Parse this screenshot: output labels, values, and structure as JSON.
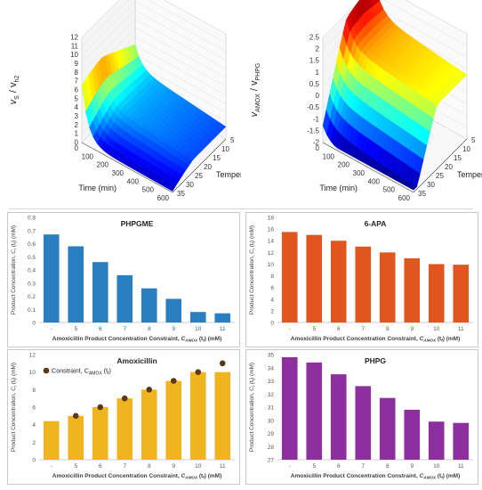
{
  "chart_data": [
    {
      "type": "surface3d",
      "panel": "vs-ratio",
      "zlabel_main": "v",
      "zlabel_sub1": "S",
      "zlabel_mid": " / v",
      "zlabel_sub2": "h2",
      "xlabel": "Time (min)",
      "ylabel": "Temperature (°C)",
      "z_ticks": [
        "0",
        "1",
        "2",
        "3",
        "4",
        "5",
        "6",
        "7",
        "8",
        "9",
        "10",
        "11",
        "12"
      ],
      "x_ticks": [
        "0",
        "100",
        "200",
        "300",
        "400",
        "500",
        "600"
      ],
      "y_ticks": [
        "5",
        "10",
        "15",
        "20",
        "25",
        "30",
        "35"
      ],
      "zlim": [
        0,
        12
      ],
      "xlim": [
        0,
        600
      ],
      "ylim": [
        5,
        35
      ],
      "colormap": "jet"
    },
    {
      "type": "surface3d",
      "panel": "vamox-ratio",
      "zlabel_main": "v",
      "zlabel_sub1": "AMOX",
      "zlabel_mid": " / v",
      "zlabel_sub2": "PHPG",
      "xlabel": "Time (min)",
      "ylabel": "Temperature (°C)",
      "z_ticks": [
        "-2",
        "-1.5",
        "-1",
        "-0.5",
        "0",
        "0.5",
        "1",
        "1.5",
        "2",
        "2.5"
      ],
      "x_ticks": [
        "0",
        "100",
        "200",
        "300",
        "400",
        "500",
        "600"
      ],
      "y_ticks": [
        "5",
        "10",
        "15",
        "20",
        "25",
        "30",
        "35"
      ],
      "zlim": [
        -2,
        2.5
      ],
      "xlim": [
        0,
        600
      ],
      "ylim": [
        5,
        35
      ],
      "colormap": "jet"
    },
    {
      "type": "bar",
      "panel": "phpgme",
      "title": "PHPGME",
      "ylabel_pre": "Product Concentration, ",
      "ylabel_var": "C",
      "ylabel_sub": "i",
      "ylabel_post": " (t",
      "ylabel_sub2": "f",
      "ylabel_end": ") (mM)",
      "xlabel_pre": "Amoxicillin Product Concentration Constraint, ",
      "xlabel_var": "C",
      "xlabel_sub": "AMOX",
      "xlabel_post": " (t",
      "xlabel_sub2": "f",
      "xlabel_end": ") (mM)",
      "categories": [
        "-",
        "5",
        "6",
        "7",
        "8",
        "9",
        "10",
        "11"
      ],
      "values": [
        0.67,
        0.58,
        0.46,
        0.36,
        0.26,
        0.18,
        0.08,
        0.07
      ],
      "ylim": [
        0,
        0.8
      ],
      "yticks": [
        "0",
        "0.1",
        "0.2",
        "0.3",
        "0.4",
        "0.5",
        "0.6",
        "0.7",
        "0.8"
      ],
      "color": "#2a7fc1"
    },
    {
      "type": "bar",
      "panel": "6apa",
      "title": "6-APA",
      "ylabel_pre": "Product Concentration, ",
      "ylabel_var": "C",
      "ylabel_sub": "i",
      "ylabel_post": " (t",
      "ylabel_sub2": "f",
      "ylabel_end": ") (mM)",
      "xlabel_pre": "Amoxicillin Product Concentration Constraint, ",
      "xlabel_var": "C",
      "xlabel_sub": "AMOX",
      "xlabel_post": " (t",
      "xlabel_sub2": "f",
      "xlabel_end": ") (mM)",
      "categories": [
        "-",
        "5",
        "6",
        "7",
        "8",
        "9",
        "10",
        "11"
      ],
      "values": [
        15.5,
        15.0,
        14.0,
        13.0,
        12.0,
        11.0,
        10.0,
        9.9
      ],
      "ylim": [
        0,
        18
      ],
      "yticks": [
        "0",
        "2",
        "4",
        "6",
        "8",
        "10",
        "12",
        "14",
        "16",
        "18"
      ],
      "color": "#e0561e"
    },
    {
      "type": "bar",
      "panel": "amoxicillin",
      "title": "Amoxicillin",
      "legend_label_pre": "Constraint, C",
      "legend_label_sub": "AMOX",
      "legend_label_post": " (t",
      "legend_label_sub2": "f",
      "legend_label_end": ")",
      "ylabel_pre": "Product Concentration, ",
      "ylabel_var": "C",
      "ylabel_sub": "i",
      "ylabel_post": " (t",
      "ylabel_sub2": "f",
      "ylabel_end": ") (mM)",
      "xlabel_pre": "Amoxicillin Product Concentration Constraint, ",
      "xlabel_var": "C",
      "xlabel_sub": "AMOX",
      "xlabel_post": " (t",
      "xlabel_sub2": "f",
      "xlabel_end": ") (mM)",
      "categories": [
        "-",
        "5",
        "6",
        "7",
        "8",
        "9",
        "10",
        "11"
      ],
      "values": [
        4.4,
        5.0,
        6.0,
        7.0,
        8.0,
        9.0,
        10.0,
        10.0
      ],
      "constraint": [
        null,
        5,
        6,
        7,
        8,
        9,
        10,
        11
      ],
      "ylim": [
        0,
        12
      ],
      "yticks": [
        "0",
        "2",
        "4",
        "6",
        "8",
        "10",
        "12"
      ],
      "color": "#f0b41e",
      "marker_color": "#5a3818"
    },
    {
      "type": "bar",
      "panel": "phpg",
      "title": "PHPG",
      "ylabel_pre": "Product Concentration, ",
      "ylabel_var": "C",
      "ylabel_sub": "i",
      "ylabel_post": " (t",
      "ylabel_sub2": "f",
      "ylabel_end": ") (mM)",
      "xlabel_pre": "Amoxicillin Product Concentration Constraint, ",
      "xlabel_var": "C",
      "xlabel_sub": "AMOX",
      "xlabel_post": " (t",
      "xlabel_sub2": "f",
      "xlabel_end": ") (mM)",
      "categories": [
        "-",
        "5",
        "6",
        "7",
        "8",
        "9",
        "10",
        "11"
      ],
      "values": [
        34.8,
        34.4,
        33.5,
        32.6,
        31.7,
        30.8,
        29.9,
        29.8
      ],
      "ylim": [
        27,
        35
      ],
      "yticks": [
        "27",
        "28",
        "29",
        "30",
        "31",
        "32",
        "33",
        "34",
        "35"
      ],
      "color": "#8e2fa0"
    }
  ]
}
